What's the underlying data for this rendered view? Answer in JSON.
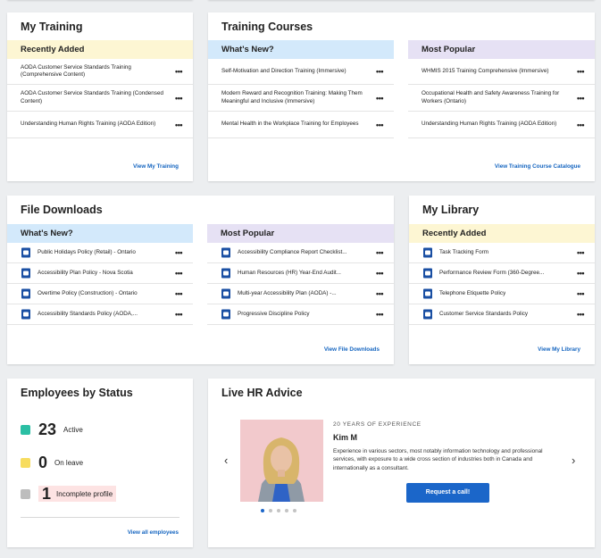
{
  "my_training": {
    "title": "My Training",
    "header": "Recently Added",
    "items": [
      "AODA Customer Service Standards Training (Comprehensive Content)",
      "AODA Customer Service Standards Training (Condensed Content)",
      "Understanding Human Rights Training (AODA Edition)"
    ],
    "link": "View My Training"
  },
  "training_courses": {
    "title": "Training Courses",
    "whats_new_header": "What's New?",
    "whats_new": [
      "Self-Motivation and Direction Training (Immersive)",
      "Modern Reward and Recognition Training: Making Them Meaningful and Inclusive (Immersive)",
      "Mental Health in the Workplace Training for Employees"
    ],
    "popular_header": "Most Popular",
    "popular": [
      "WHMIS 2015 Training Comprehensive (Immersive)",
      "Occupational Health and Safety Awareness Training for Workers (Ontario)",
      "Understanding Human Rights Training (AODA Edition)"
    ],
    "link": "View Training Course Catalogue"
  },
  "file_downloads": {
    "title": "File Downloads",
    "whats_new_header": "What's New?",
    "whats_new": [
      "Public Holidays Policy (Retail) - Ontario",
      "Accessibility Plan Policy - Nova Scotia",
      "Overtime Policy (Construction) - Ontario",
      "Accessibility Standards Policy (AODA,..."
    ],
    "popular_header": "Most Popular",
    "popular": [
      "Accessibility Compliance Report Checklist...",
      "Human Resources (HR) Year-End Audit...",
      "Multi-year Accessibility Plan (AODA) -...",
      "Progressive Discipline Policy"
    ],
    "link": "View File Downloads"
  },
  "my_library": {
    "title": "My Library",
    "header": "Recently Added",
    "items": [
      "Task Tracking Form",
      "Performance Review Form (360-Degree...",
      "Telephone Etiquette Policy",
      "Customer Service Standards Policy"
    ],
    "link": "View My Library"
  },
  "employees_by_status": {
    "title": "Employees by Status",
    "stats": [
      {
        "count": "23",
        "label": "Active",
        "color": "#2bbfa4"
      },
      {
        "count": "0",
        "label": "On leave",
        "color": "#f7dc5f"
      },
      {
        "count": "1",
        "label": "Incomplete profile",
        "color": "#bdbdbd"
      }
    ],
    "link": "View all employees"
  },
  "live_hr_advice": {
    "title": "Live HR Advice",
    "experience": "20 YEARS OF EXPERIENCE",
    "name": "Kim M",
    "bio": "Experience in various sectors, most notably information technology and professional services, with exposure to a wide cross section of industries both in Canada and internationally as a consultant.",
    "button": "Request a call!",
    "prev_icon": "chevron-left-icon",
    "next_icon": "chevron-right-icon",
    "pages": 5,
    "active_page": 1
  },
  "colors": {
    "accent": "#1565c0",
    "button": "#1b66c9",
    "file_icon": "#1a4fa3",
    "recent_header": "#fdf6d3",
    "new_header": "#d3e9fb",
    "popular_header": "#e6e1f4"
  }
}
